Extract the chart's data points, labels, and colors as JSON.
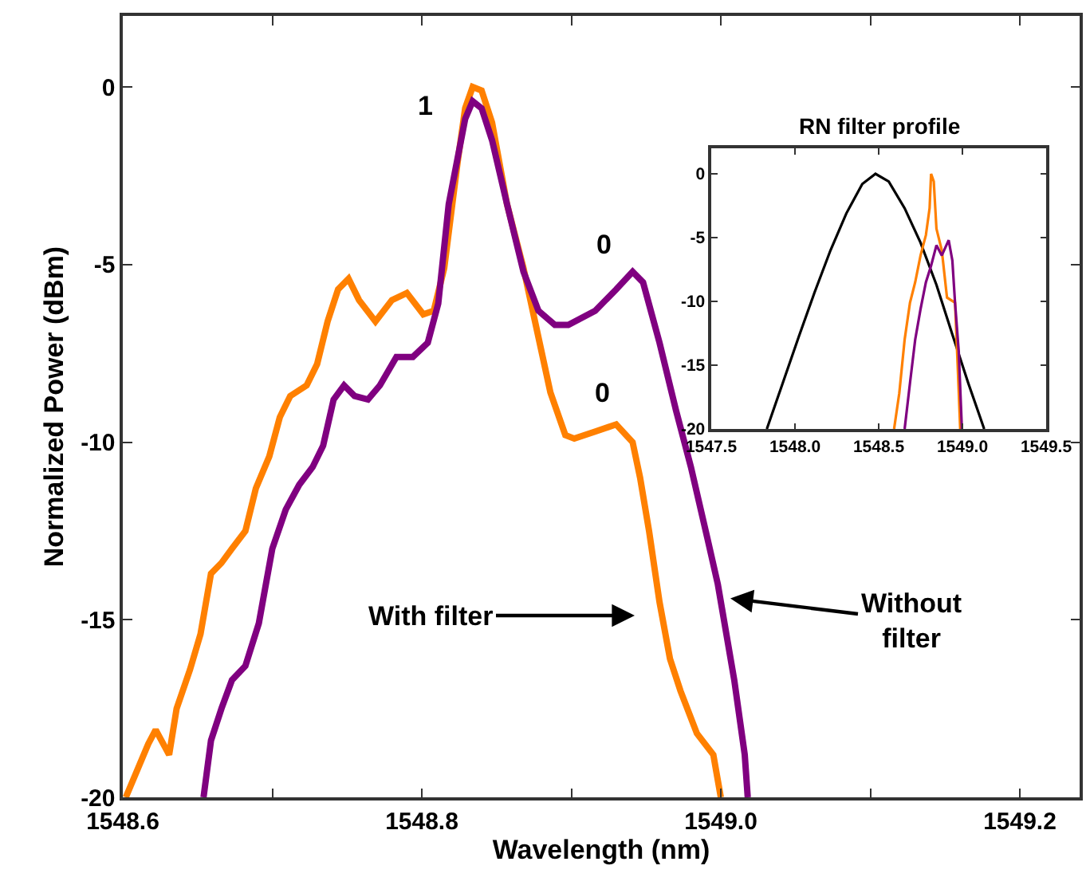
{
  "chart_data": [
    {
      "type": "line",
      "xlabel": "Wavelength (nm)",
      "ylabel": "Normalized Power (dBm)",
      "xlim": [
        1548.6,
        1549.24
      ],
      "ylim": [
        -20,
        2
      ],
      "xticks": [
        1548.6,
        {
          "value": 1548.7,
          "label": null
        },
        1548.8,
        {
          "value": 1548.9,
          "label": null
        },
        {
          "value": 1549.0,
          "label": "1549.0"
        },
        {
          "value": 1549.1,
          "label": null
        },
        1549.2
      ],
      "yticks": [
        0,
        -5,
        -10,
        -15,
        -20
      ],
      "series": [
        {
          "color": "#ff8000",
          "x": [
            1548.602,
            1548.617,
            1548.622,
            1548.631,
            1548.636,
            1548.645,
            1548.652,
            1548.659,
            1548.666,
            1548.673,
            1548.682,
            1548.689,
            1548.698,
            1548.705,
            1548.712,
            1548.723,
            1548.73,
            1548.737,
            1548.744,
            1548.751,
            1548.758,
            1548.769,
            1548.78,
            1548.79,
            1548.801,
            1548.808,
            1548.815,
            1548.824,
            1548.829,
            1548.834,
            1548.84,
            1548.847,
            1548.857,
            1548.868,
            1548.886,
            1548.896,
            1548.902,
            1548.916,
            1548.93,
            1548.941,
            1548.946,
            1548.952,
            1548.959,
            1548.966,
            1548.973,
            1548.984,
            1548.995,
            1549.0
          ],
          "values": [
            -20.0,
            -18.5,
            -18.1,
            -18.8,
            -17.5,
            -16.4,
            -15.4,
            -13.7,
            -13.4,
            -13.0,
            -12.5,
            -11.3,
            -10.4,
            -9.3,
            -8.7,
            -8.4,
            -7.8,
            -6.6,
            -5.7,
            -5.4,
            -6.0,
            -6.6,
            -6.0,
            -5.8,
            -6.4,
            -6.3,
            -5.1,
            -2.1,
            -0.6,
            0.0,
            -0.1,
            -1.0,
            -3.3,
            -5.1,
            -8.6,
            -9.8,
            -9.9,
            -9.7,
            -9.5,
            -10.0,
            -11.0,
            -12.5,
            -14.5,
            -16.1,
            -17.0,
            -18.2,
            -18.8,
            -20.0
          ]
        },
        {
          "color": "#800080",
          "x": [
            1548.654,
            1548.659,
            1548.666,
            1548.673,
            1548.682,
            1548.691,
            1548.7,
            1548.709,
            1548.718,
            1548.727,
            1548.734,
            1548.741,
            1548.748,
            1548.755,
            1548.764,
            1548.772,
            1548.783,
            1548.794,
            1548.804,
            1548.811,
            1548.818,
            1548.829,
            1548.834,
            1548.84,
            1548.847,
            1548.857,
            1548.868,
            1548.878,
            1548.889,
            1548.898,
            1548.916,
            1548.93,
            1548.941,
            1548.948,
            1548.959,
            1548.97,
            1548.98,
            1548.991,
            1548.998,
            1549.009,
            1549.016,
            1549.018
          ],
          "values": [
            -20.0,
            -18.4,
            -17.5,
            -16.7,
            -16.3,
            -15.1,
            -13.0,
            -11.9,
            -11.2,
            -10.7,
            -10.1,
            -8.8,
            -8.4,
            -8.7,
            -8.8,
            -8.4,
            -7.6,
            -7.6,
            -7.2,
            -6.1,
            -3.3,
            -0.9,
            -0.4,
            -0.6,
            -1.5,
            -3.3,
            -5.2,
            -6.3,
            -6.7,
            -6.7,
            -6.3,
            -5.7,
            -5.2,
            -5.5,
            -7.2,
            -9.1,
            -10.7,
            -12.7,
            -14.0,
            -16.7,
            -18.8,
            -20.0
          ]
        }
      ],
      "annotations": [
        "1",
        "0",
        "0",
        "With filter",
        "Without\nfilter"
      ]
    },
    {
      "type": "line",
      "title": "RN filter profile",
      "xlim": [
        1547.5,
        1549.5
      ],
      "ylim": [
        -20,
        2
      ],
      "xticks": [
        1547.5,
        {
          "value": 1548.0,
          "label": "1548.0"
        },
        1548.5,
        {
          "value": 1549.0,
          "label": "1549.0"
        },
        1549.5
      ],
      "yticks": [
        0,
        -5,
        -10,
        -15,
        -20
      ],
      "series": [
        {
          "color": "#000000",
          "x": [
            1547.832,
            1547.927,
            1548.022,
            1548.117,
            1548.212,
            1548.307,
            1548.402,
            1548.481,
            1548.56,
            1548.655,
            1548.75,
            1548.845,
            1548.94,
            1549.035,
            1549.13
          ],
          "values": [
            -20,
            -16.4,
            -12.8,
            -9.3,
            -6.0,
            -3.1,
            -0.8,
            0,
            -0.6,
            -2.7,
            -5.4,
            -8.7,
            -12.6,
            -16.4,
            -20
          ]
        },
        {
          "color": "#ff8000",
          "x": [
            1548.592,
            1548.623,
            1548.655,
            1548.687,
            1548.718,
            1548.75,
            1548.782,
            1548.804,
            1548.813,
            1548.829,
            1548.845,
            1548.877,
            1548.908,
            1548.956,
            1548.972,
            1548.987
          ],
          "values": [
            -20,
            -17.2,
            -13.0,
            -10.1,
            -8.5,
            -6.4,
            -4.8,
            -2.7,
            0,
            -0.6,
            -4.3,
            -6.0,
            -9.7,
            -10.1,
            -15.1,
            -20
          ]
        },
        {
          "color": "#800080",
          "x": [
            1548.655,
            1548.687,
            1548.718,
            1548.75,
            1548.782,
            1548.813,
            1548.845,
            1548.877,
            1548.918,
            1548.94,
            1548.956,
            1548.978,
            1548.997
          ],
          "values": [
            -20,
            -16.4,
            -13.0,
            -10.6,
            -8.5,
            -7.2,
            -5.6,
            -6.4,
            -5.2,
            -6.8,
            -10.1,
            -13.9,
            -20
          ]
        }
      ]
    }
  ]
}
